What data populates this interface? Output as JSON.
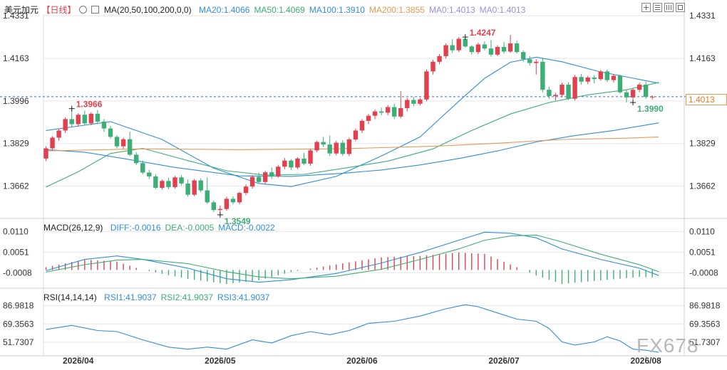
{
  "header": {
    "symbol": "美元加元",
    "period": "【日线】",
    "ma_label": "MA(20,50,100,200,0,0)",
    "ma_values": [
      {
        "text": "MA20:1.4066",
        "color": "#2f8fd8"
      },
      {
        "text": "MA50:1.4069",
        "color": "#3cae76"
      },
      {
        "text": "MA100:1.3910",
        "color": "#2f8fd8"
      },
      {
        "text": "MA200:1.3855",
        "color": "#e69a50"
      },
      {
        "text": "MA0:1.4013",
        "color": "#9a8fd8"
      },
      {
        "text": "MA0:1.4013",
        "color": "#9a8fd8"
      }
    ]
  },
  "macd_header": {
    "label": "MACD(26,12,9)",
    "values": [
      {
        "text": "DIFF:-0.0016",
        "color": "#2f8fd8"
      },
      {
        "text": "DEA:-0.0005",
        "color": "#3cae76"
      },
      {
        "text": "MACD:-0.0022",
        "color": "#2f8fd8"
      }
    ]
  },
  "rsi_header": {
    "label": "RSI(14,14,14)",
    "values": [
      {
        "text": "RSI1:41.9037",
        "color": "#2f8fd8"
      },
      {
        "text": "RSI2:41.9037",
        "color": "#3cae76"
      },
      {
        "text": "RSI3:41.9037",
        "color": "#2f8fd8"
      }
    ]
  },
  "current_price": "1.4013",
  "watermark": "FX678",
  "colors": {
    "up": "#e2404f",
    "down": "#3cae76",
    "ma20": "#2f8fd8",
    "ma50": "#3cae76",
    "ma100": "#2f8fd8",
    "ma200": "#e69a50",
    "grid": "#e6e6e6"
  },
  "chart_data": [
    {
      "type": "candlestick",
      "title": "美元加元【日线】",
      "y_ticks": [
        "1.4331",
        "1.4163",
        "1.3996",
        "1.3829",
        "1.3662"
      ],
      "ylim": [
        1.3546,
        1.4331
      ],
      "x_ticks": [
        "2026/04",
        "2026/05",
        "2026/06",
        "2026/07",
        "2026/08"
      ],
      "x_tick_index": [
        5,
        27,
        49,
        71,
        93
      ],
      "annotations": [
        {
          "text": "1.3966",
          "index": 4,
          "price": 1.3966,
          "color": "#e2404f"
        },
        {
          "text": "1.4247",
          "index": 65,
          "price": 1.4247,
          "color": "#e2404f"
        },
        {
          "text": "1.3549",
          "index": 27,
          "price": 1.3549,
          "color": "#3cae76"
        },
        {
          "text": "1.3990",
          "index": 91,
          "price": 1.399,
          "color": "#3cae76"
        }
      ],
      "candles": [
        [
          1.377,
          1.3818,
          1.376,
          1.381
        ],
        [
          1.381,
          1.3858,
          1.3802,
          1.3852
        ],
        [
          1.3852,
          1.3888,
          1.384,
          1.388
        ],
        [
          1.388,
          1.3932,
          1.387,
          1.3925
        ],
        [
          1.3925,
          1.3966,
          1.3895,
          1.3905
        ],
        [
          1.3905,
          1.3948,
          1.3895,
          1.3942
        ],
        [
          1.3942,
          1.3958,
          1.39,
          1.3908
        ],
        [
          1.3908,
          1.3952,
          1.39,
          1.3946
        ],
        [
          1.3946,
          1.396,
          1.3905,
          1.3915
        ],
        [
          1.3915,
          1.3925,
          1.3875,
          1.3888
        ],
        [
          1.3888,
          1.3898,
          1.3848,
          1.3855
        ],
        [
          1.3855,
          1.3862,
          1.381,
          1.3818
        ],
        [
          1.3818,
          1.3852,
          1.3808,
          1.3846
        ],
        [
          1.3846,
          1.3875,
          1.378,
          1.3785
        ],
        [
          1.3785,
          1.3795,
          1.3745,
          1.3752
        ],
        [
          1.3752,
          1.3762,
          1.3708,
          1.3715
        ],
        [
          1.3715,
          1.3725,
          1.369,
          1.37
        ],
        [
          1.37,
          1.3708,
          1.365,
          1.3655
        ],
        [
          1.3655,
          1.3688,
          1.3648,
          1.3682
        ],
        [
          1.3682,
          1.3695,
          1.365,
          1.3658
        ],
        [
          1.3658,
          1.3702,
          1.3652,
          1.3696
        ],
        [
          1.3696,
          1.3705,
          1.3665,
          1.3672
        ],
        [
          1.3672,
          1.3688,
          1.362,
          1.3628
        ],
        [
          1.3628,
          1.369,
          1.3622,
          1.3684
        ],
        [
          1.3684,
          1.3692,
          1.3638,
          1.3645
        ],
        [
          1.3645,
          1.3695,
          1.3592,
          1.3598
        ],
        [
          1.3598,
          1.3605,
          1.356,
          1.3568
        ],
        [
          1.3568,
          1.3585,
          1.3549,
          1.3572
        ],
        [
          1.3572,
          1.362,
          1.3565,
          1.3612
        ],
        [
          1.3612,
          1.3622,
          1.359,
          1.3598
        ],
        [
          1.3598,
          1.364,
          1.359,
          1.3635
        ],
        [
          1.3635,
          1.3668,
          1.3626,
          1.366
        ],
        [
          1.366,
          1.3705,
          1.3652,
          1.3698
        ],
        [
          1.3698,
          1.3715,
          1.3672,
          1.3678
        ],
        [
          1.3678,
          1.3722,
          1.367,
          1.3716
        ],
        [
          1.3716,
          1.3735,
          1.369,
          1.37
        ],
        [
          1.37,
          1.3745,
          1.3695,
          1.3738
        ],
        [
          1.3738,
          1.3772,
          1.3728,
          1.3762
        ],
        [
          1.3762,
          1.3768,
          1.3725,
          1.3735
        ],
        [
          1.3735,
          1.3775,
          1.3728,
          1.377
        ],
        [
          1.377,
          1.3792,
          1.3745,
          1.375
        ],
        [
          1.375,
          1.3808,
          1.3742,
          1.3802
        ],
        [
          1.3802,
          1.384,
          1.3795,
          1.3835
        ],
        [
          1.3835,
          1.3855,
          1.3815,
          1.3825
        ],
        [
          1.3825,
          1.386,
          1.378,
          1.379
        ],
        [
          1.379,
          1.384,
          1.3782,
          1.3832
        ],
        [
          1.3832,
          1.3842,
          1.378,
          1.3788
        ],
        [
          1.3788,
          1.3852,
          1.378,
          1.3845
        ],
        [
          1.3845,
          1.3888,
          1.3838,
          1.388
        ],
        [
          1.388,
          1.3925,
          1.387,
          1.3918
        ],
        [
          1.3918,
          1.3945,
          1.3905,
          1.3938
        ],
        [
          1.3938,
          1.3962,
          1.3925,
          1.3955
        ],
        [
          1.3955,
          1.397,
          1.394,
          1.395
        ],
        [
          1.395,
          1.398,
          1.394,
          1.3972
        ],
        [
          1.3972,
          1.3985,
          1.3925,
          1.3935
        ],
        [
          1.3935,
          1.4035,
          1.3928,
          1.3968
        ],
        [
          1.3968,
          1.4008,
          1.3955,
          1.4
        ],
        [
          1.4,
          1.4012,
          1.3975,
          1.3985
        ],
        [
          1.3985,
          1.4008,
          1.3978,
          1.4002
        ],
        [
          1.4002,
          1.412,
          1.3995,
          1.4112
        ],
        [
          1.4112,
          1.4158,
          1.41,
          1.415
        ],
        [
          1.415,
          1.418,
          1.414,
          1.4172
        ],
        [
          1.4172,
          1.4222,
          1.4162,
          1.4215
        ],
        [
          1.4215,
          1.4238,
          1.4185,
          1.4195
        ],
        [
          1.4195,
          1.4247,
          1.4188,
          1.424
        ],
        [
          1.424,
          1.4245,
          1.4205,
          1.421
        ],
        [
          1.421,
          1.4215,
          1.4178,
          1.4188
        ],
        [
          1.4188,
          1.4225,
          1.418,
          1.4218
        ],
        [
          1.4218,
          1.423,
          1.4195,
          1.4202
        ],
        [
          1.4202,
          1.4235,
          1.417,
          1.4178
        ],
        [
          1.4178,
          1.4215,
          1.4172,
          1.4208
        ],
        [
          1.4208,
          1.4228,
          1.4182,
          1.419
        ],
        [
          1.419,
          1.4255,
          1.4185,
          1.4222
        ],
        [
          1.4222,
          1.4232,
          1.4182,
          1.4188
        ],
        [
          1.4188,
          1.4195,
          1.415,
          1.416
        ],
        [
          1.416,
          1.4172,
          1.4135,
          1.4145
        ],
        [
          1.4145,
          1.416,
          1.41,
          1.415
        ],
        [
          1.415,
          1.4165,
          1.403,
          1.404
        ],
        [
          1.404,
          1.4052,
          1.4005,
          1.4015
        ],
        [
          1.4015,
          1.4028,
          1.3998,
          1.402
        ],
        [
          1.402,
          1.4068,
          1.401,
          1.406
        ],
        [
          1.406,
          1.407,
          1.4,
          1.4005
        ],
        [
          1.4005,
          1.4098,
          1.3998,
          1.409
        ],
        [
          1.409,
          1.4102,
          1.406,
          1.4072
        ],
        [
          1.4072,
          1.4095,
          1.4062,
          1.4088
        ],
        [
          1.4088,
          1.4098,
          1.4065,
          1.4082
        ],
        [
          1.4082,
          1.4118,
          1.4075,
          1.4112
        ],
        [
          1.4112,
          1.412,
          1.407,
          1.4078
        ],
        [
          1.4078,
          1.4102,
          1.4068,
          1.4095
        ],
        [
          1.4095,
          1.41,
          1.4025,
          1.403
        ],
        [
          1.403,
          1.404,
          1.399,
          1.401
        ],
        [
          1.401,
          1.4045,
          1.4002,
          1.404
        ],
        [
          1.404,
          1.4068,
          1.403,
          1.406
        ],
        [
          1.406,
          1.4072,
          1.4005,
          1.4012
        ],
        [
          1.4012,
          1.4018,
          1.4002,
          1.4013
        ]
      ],
      "ma_series": [
        {
          "key": "ma20",
          "color": "#2f8fd8",
          "points": [
            [
              0,
              1.388
            ],
            [
              10,
              1.3915
            ],
            [
              18,
              1.3845
            ],
            [
              26,
              1.3732
            ],
            [
              33,
              1.3672
            ],
            [
              38,
              1.366
            ],
            [
              45,
              1.37
            ],
            [
              52,
              1.378
            ],
            [
              58,
              1.3855
            ],
            [
              64,
              1.3995
            ],
            [
              68,
              1.4085
            ],
            [
              72,
              1.4148
            ],
            [
              76,
              1.4168
            ],
            [
              80,
              1.415
            ],
            [
              86,
              1.411
            ],
            [
              95,
              1.4066
            ]
          ]
        },
        {
          "key": "ma50",
          "color": "#3cae76",
          "points": [
            [
              0,
              1.3658
            ],
            [
              5,
              1.3718
            ],
            [
              10,
              1.379
            ],
            [
              15,
              1.381
            ],
            [
              22,
              1.3762
            ],
            [
              28,
              1.3722
            ],
            [
              34,
              1.3705
            ],
            [
              40,
              1.3708
            ],
            [
              47,
              1.3735
            ],
            [
              53,
              1.376
            ],
            [
              60,
              1.3808
            ],
            [
              66,
              1.388
            ],
            [
              72,
              1.3945
            ],
            [
              78,
              1.399
            ],
            [
              84,
              1.402
            ],
            [
              90,
              1.404
            ],
            [
              95,
              1.4069
            ]
          ]
        },
        {
          "key": "ma100",
          "color": "#2f8fd8",
          "points": [
            [
              0,
              1.3805
            ],
            [
              6,
              1.3795
            ],
            [
              12,
              1.377
            ],
            [
              20,
              1.3735
            ],
            [
              30,
              1.3702
            ],
            [
              38,
              1.37
            ],
            [
              46,
              1.3712
            ],
            [
              52,
              1.3725
            ],
            [
              58,
              1.3745
            ],
            [
              64,
              1.377
            ],
            [
              70,
              1.38
            ],
            [
              76,
              1.3835
            ],
            [
              82,
              1.386
            ],
            [
              88,
              1.388
            ],
            [
              95,
              1.391
            ]
          ]
        },
        {
          "key": "ma200",
          "color": "#e69a50",
          "points": [
            [
              0,
              1.38
            ],
            [
              15,
              1.3808
            ],
            [
              30,
              1.3805
            ],
            [
              45,
              1.3808
            ],
            [
              60,
              1.3818
            ],
            [
              70,
              1.383
            ],
            [
              80,
              1.3845
            ],
            [
              90,
              1.385
            ],
            [
              95,
              1.3855
            ]
          ]
        }
      ]
    },
    {
      "type": "bar",
      "title": "MACD(26,12,9)",
      "y_ticks": [
        "0.0110",
        "0.0051",
        "-0.0008"
      ],
      "ylim": [
        -0.0042,
        0.0125
      ],
      "diff": [
        [
          0,
          -0.0002
        ],
        [
          6,
          0.003
        ],
        [
          11,
          0.004
        ],
        [
          15,
          0.003
        ],
        [
          22,
          0.0005
        ],
        [
          28,
          -0.0025
        ],
        [
          33,
          -0.0035
        ],
        [
          38,
          -0.0028
        ],
        [
          45,
          -0.001
        ],
        [
          52,
          0.002
        ],
        [
          58,
          0.005
        ],
        [
          64,
          0.0085
        ],
        [
          68,
          0.0108
        ],
        [
          72,
          0.0105
        ],
        [
          76,
          0.0092
        ],
        [
          80,
          0.006
        ],
        [
          86,
          0.003
        ],
        [
          92,
          0.0005
        ],
        [
          95,
          -0.0016
        ]
      ],
      "dea": [
        [
          0,
          -0.0006
        ],
        [
          6,
          0.0015
        ],
        [
          11,
          0.0028
        ],
        [
          15,
          0.003
        ],
        [
          22,
          0.0018
        ],
        [
          28,
          -0.0005
        ],
        [
          33,
          -0.002
        ],
        [
          38,
          -0.0025
        ],
        [
          45,
          -0.0018
        ],
        [
          52,
          0.0002
        ],
        [
          58,
          0.003
        ],
        [
          64,
          0.006
        ],
        [
          68,
          0.0085
        ],
        [
          72,
          0.0097
        ],
        [
          76,
          0.01
        ],
        [
          80,
          0.008
        ],
        [
          86,
          0.0045
        ],
        [
          92,
          0.0015
        ],
        [
          95,
          -0.0005
        ]
      ]
    },
    {
      "type": "line",
      "title": "RSI(14,14,14)",
      "y_ticks": [
        "86.9818",
        "69.3563",
        "51.7307"
      ],
      "ylim": [
        40,
        95
      ],
      "rsi": [
        [
          0,
          64
        ],
        [
          4,
          68
        ],
        [
          8,
          63
        ],
        [
          11,
          62
        ],
        [
          15,
          54
        ],
        [
          19,
          47
        ],
        [
          22,
          45
        ],
        [
          25,
          47
        ],
        [
          28,
          45
        ],
        [
          32,
          54
        ],
        [
          35,
          51
        ],
        [
          38,
          58
        ],
        [
          41,
          62
        ],
        [
          44,
          59
        ],
        [
          47,
          63
        ],
        [
          50,
          70
        ],
        [
          54,
          72
        ],
        [
          58,
          77
        ],
        [
          62,
          84
        ],
        [
          65,
          88
        ],
        [
          67,
          86
        ],
        [
          70,
          80
        ],
        [
          73,
          74
        ],
        [
          76,
          72
        ],
        [
          78,
          65
        ],
        [
          80,
          52
        ],
        [
          82,
          49
        ],
        [
          85,
          52
        ],
        [
          87,
          57
        ],
        [
          89,
          53
        ],
        [
          91,
          45
        ],
        [
          93,
          44
        ],
        [
          95,
          42
        ]
      ]
    }
  ]
}
